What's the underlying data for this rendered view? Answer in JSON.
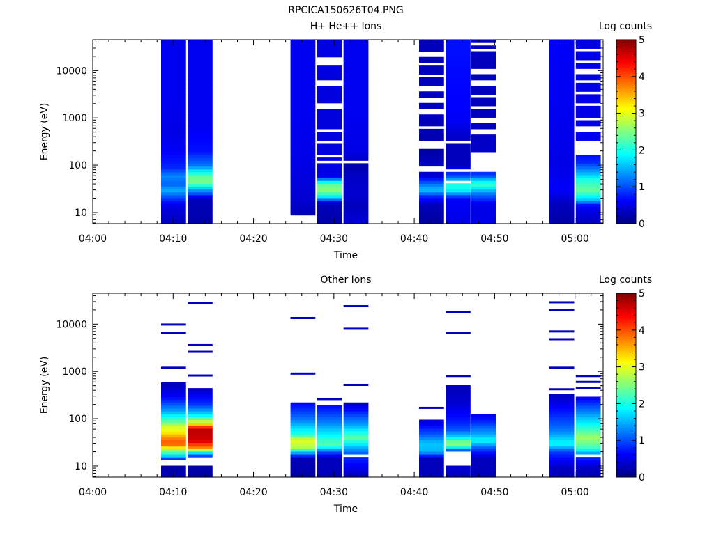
{
  "figure_title": "RPCICA150626T04.PNG",
  "chart_data": [
    {
      "type": "heatmap",
      "title": "H+ He++ Ions",
      "xlabel": "Time",
      "ylabel": "Energy (eV)",
      "x_ticks": [
        "04:00",
        "04:10",
        "04:20",
        "04:30",
        "04:40",
        "04:50",
        "05:00"
      ],
      "x_range_minutes": [
        0,
        63.5
      ],
      "y_ticks": [
        "10",
        "100",
        "1000",
        "10000"
      ],
      "y_scale": "log",
      "y_range": [
        5.8,
        45000
      ],
      "colorbar": {
        "label": "Log counts",
        "ticks": [
          "0",
          "1",
          "2",
          "3",
          "4",
          "5"
        ],
        "range": [
          0,
          5
        ],
        "colormap": "jet"
      },
      "columns": [
        {
          "t0": 8.5,
          "t1": 11.6,
          "profile": [
            [
              6,
              0.3
            ],
            [
              9.5,
              0.4
            ],
            [
              14,
              0.5
            ],
            [
              20,
              0.9
            ],
            [
              30,
              1.5
            ],
            [
              40,
              1.1
            ],
            [
              60,
              1.3
            ],
            [
              90,
              0.8
            ],
            [
              200,
              0.6
            ],
            [
              500,
              0.5
            ],
            [
              2000,
              0.55
            ],
            [
              45000,
              0.55
            ]
          ],
          "gaps": []
        },
        {
          "t0": 11.8,
          "t1": 14.9,
          "profile": [
            [
              6,
              0.2
            ],
            [
              20,
              0.3
            ],
            [
              25,
              1.0
            ],
            [
              30,
              1.4
            ],
            [
              45,
              2.5
            ],
            [
              60,
              2.3
            ],
            [
              100,
              1.2
            ],
            [
              200,
              0.7
            ],
            [
              800,
              0.55
            ],
            [
              45000,
              0.55
            ]
          ],
          "gaps": []
        },
        {
          "t0": 24.6,
          "t1": 27.7,
          "profile": [
            [
              6,
              0.5
            ],
            [
              9.5,
              0.3
            ],
            [
              20,
              0.4
            ],
            [
              100,
              0.5
            ],
            [
              1000,
              0.55
            ],
            [
              45000,
              0.55
            ]
          ],
          "gaps": [
            [
              6,
              9.4
            ]
          ]
        },
        {
          "t0": 27.9,
          "t1": 31.0,
          "profile": [
            [
              6,
              0.2
            ],
            [
              16,
              0.3
            ],
            [
              22,
              1.8
            ],
            [
              30,
              2.6
            ],
            [
              40,
              2.3
            ],
            [
              60,
              0.5
            ],
            [
              1000,
              0.45
            ],
            [
              45000,
              0.5
            ]
          ],
          "gaps": [
            [
              12000,
              19000
            ],
            [
              4800,
              6300
            ],
            [
              1600,
              2100
            ],
            [
              520,
              600
            ],
            [
              300,
              340
            ],
            [
              240,
              270
            ],
            [
              140,
              160
            ],
            [
              110,
              125
            ]
          ]
        },
        {
          "t0": 31.2,
          "t1": 34.3,
          "profile": [
            [
              6,
              0.45
            ],
            [
              14,
              0.3
            ],
            [
              25,
              0.4
            ],
            [
              60,
              0.35
            ],
            [
              100,
              0.2
            ],
            [
              200,
              0.5
            ],
            [
              1000,
              0.55
            ],
            [
              45000,
              0.55
            ]
          ],
          "gaps": [
            [
              105,
              118
            ]
          ]
        },
        {
          "t0": 40.6,
          "t1": 43.7,
          "profile": [
            [
              6,
              0.15
            ],
            [
              15,
              0.3
            ],
            [
              22,
              0.8
            ],
            [
              30,
              1.6
            ],
            [
              40,
              1.2
            ],
            [
              60,
              0.4
            ],
            [
              200,
              0.2
            ],
            [
              1000,
              0.3
            ],
            [
              45000,
              0.3
            ]
          ],
          "gaps": [
            [
              75,
              100
            ],
            [
              230,
              320
            ],
            [
              550,
              700
            ],
            [
              1200,
              1500
            ],
            [
              2200,
              2600
            ],
            [
              3800,
              4500
            ],
            [
              7000,
              8000
            ],
            [
              12000,
              14000
            ],
            [
              20000,
              24000
            ]
          ]
        },
        {
          "t0": 43.9,
          "t1": 47.0,
          "profile": [
            [
              6,
              0.5
            ],
            [
              20,
              0.6
            ],
            [
              30,
              1.9
            ],
            [
              40,
              2.0
            ],
            [
              60,
              1.0
            ],
            [
              100,
              0.3
            ],
            [
              300,
              0.3
            ],
            [
              1000,
              0.6
            ],
            [
              45000,
              0.7
            ]
          ],
          "gaps": [
            [
              40,
              45
            ],
            [
              70,
              80
            ],
            [
              120,
              130
            ],
            [
              300,
              330
            ]
          ]
        },
        {
          "t0": 47.1,
          "t1": 50.2,
          "profile": [
            [
              6,
              0.5
            ],
            [
              15,
              0.5
            ],
            [
              25,
              1.2
            ],
            [
              40,
              2.2
            ],
            [
              60,
              1.0
            ],
            [
              100,
              0.4
            ],
            [
              1000,
              0.3
            ],
            [
              45000,
              0.3
            ]
          ],
          "gaps": [
            [
              70,
              140
            ],
            [
              140,
              190
            ],
            [
              450,
              600
            ],
            [
              800,
              1000
            ],
            [
              1500,
              1800
            ],
            [
              2800,
              3300
            ],
            [
              5000,
              6000
            ],
            [
              9000,
              11000
            ],
            [
              16000,
              18000
            ],
            [
              26000,
              30000
            ],
            [
              36000,
              40000
            ]
          ]
        },
        {
          "t0": 56.8,
          "t1": 59.9,
          "profile": [
            [
              6,
              0.2
            ],
            [
              15,
              0.3
            ],
            [
              30,
              0.6
            ],
            [
              100,
              0.5
            ],
            [
              1000,
              0.55
            ],
            [
              45000,
              0.6
            ]
          ],
          "gaps": []
        },
        {
          "t0": 60.1,
          "t1": 63.2,
          "profile": [
            [
              6,
              0.3
            ],
            [
              14,
              0.6
            ],
            [
              18,
              1.5
            ],
            [
              30,
              2.4
            ],
            [
              50,
              2.0
            ],
            [
              80,
              1.3
            ],
            [
              120,
              0.8
            ],
            [
              200,
              0.6
            ],
            [
              1000,
              0.5
            ],
            [
              45000,
              0.5
            ]
          ],
          "gaps": [
            [
              160,
              320
            ],
            [
              500,
              650
            ],
            [
              900,
              1100
            ],
            [
              1800,
              2100
            ],
            [
              3000,
              3500
            ],
            [
              5200,
              6000
            ],
            [
              9000,
              10500
            ],
            [
              15000,
              17000
            ],
            [
              25000,
              28000
            ]
          ]
        }
      ]
    },
    {
      "type": "heatmap",
      "title": "Other Ions",
      "xlabel": "Time",
      "ylabel": "Energy (eV)",
      "x_ticks": [
        "04:00",
        "04:10",
        "04:20",
        "04:30",
        "04:40",
        "04:50",
        "05:00"
      ],
      "x_range_minutes": [
        0,
        63.5
      ],
      "y_ticks": [
        "10",
        "100",
        "1000",
        "10000"
      ],
      "y_scale": "log",
      "y_range": [
        5.8,
        45000
      ],
      "colorbar": {
        "label": "Log counts",
        "ticks": [
          "0",
          "1",
          "2",
          "3",
          "4",
          "5"
        ],
        "range": [
          0,
          5
        ],
        "colormap": "jet"
      },
      "columns": [
        {
          "t0": 8.5,
          "t1": 11.6,
          "profile": [
            [
              6,
              0.3
            ],
            [
              9.5,
              0.2
            ],
            [
              14,
              0.8
            ],
            [
              17,
              1.8
            ],
            [
              22,
              2.6
            ],
            [
              30,
              4.0
            ],
            [
              40,
              3.7
            ],
            [
              55,
              3.1
            ],
            [
              70,
              2.9
            ],
            [
              90,
              2.3
            ],
            [
              150,
              1.4
            ],
            [
              300,
              0.6
            ],
            [
              550,
              0.3
            ]
          ],
          "gaps": [
            [
              9.6,
              14
            ]
          ],
          "lines": [
            1200,
            6500,
            9800
          ]
        },
        {
          "t0": 11.8,
          "t1": 14.9,
          "profile": [
            [
              6,
              0.2
            ],
            [
              9.5,
              0.2
            ],
            [
              14,
              0.3
            ],
            [
              18,
              1.3
            ],
            [
              25,
              3.7
            ],
            [
              35,
              4.6
            ],
            [
              60,
              4.7
            ],
            [
              80,
              3.2
            ],
            [
              120,
              1.8
            ],
            [
              200,
              0.9
            ],
            [
              450,
              0.3
            ]
          ],
          "gaps": [
            [
              9.6,
              15
            ]
          ],
          "lines": [
            820,
            2600,
            3600,
            28000
          ]
        },
        {
          "t0": 24.6,
          "t1": 27.7,
          "profile": [
            [
              6,
              0.2
            ],
            [
              15,
              0.3
            ],
            [
              25,
              2.7
            ],
            [
              35,
              3.0
            ],
            [
              50,
              2.0
            ],
            [
              100,
              1.2
            ],
            [
              220,
              0.6
            ]
          ],
          "gaps": [],
          "lines": [
            900,
            13500
          ]
        },
        {
          "t0": 27.9,
          "t1": 31.0,
          "profile": [
            [
              15,
              0.3
            ],
            [
              20,
              1.0
            ],
            [
              28,
              2.3
            ],
            [
              40,
              2.0
            ],
            [
              80,
              1.3
            ],
            [
              200,
              0.6
            ]
          ],
          "gaps": [],
          "lines": [
            260
          ]
        },
        {
          "t0": 31.2,
          "t1": 34.3,
          "profile": [
            [
              6,
              0.3
            ],
            [
              15,
              0.8
            ],
            [
              25,
              1.5
            ],
            [
              40,
              2.4
            ],
            [
              70,
              1.5
            ],
            [
              140,
              0.8
            ],
            [
              210,
              0.3
            ]
          ],
          "gaps": [
            [
              15.5,
              18
            ]
          ],
          "lines": [
            520,
            8000,
            24000
          ]
        },
        {
          "t0": 40.6,
          "t1": 43.7,
          "profile": [
            [
              15,
              0.3
            ],
            [
              20,
              1.5
            ],
            [
              30,
              1.6
            ],
            [
              50,
              1.0
            ],
            [
              100,
              0.3
            ]
          ],
          "gaps": [],
          "lines": [
            170
          ]
        },
        {
          "t0": 43.9,
          "t1": 47.0,
          "profile": [
            [
              6,
              0.3
            ],
            [
              20,
              0.6
            ],
            [
              30,
              2.7
            ],
            [
              40,
              1.8
            ],
            [
              60,
              1.0
            ],
            [
              100,
              0.7
            ],
            [
              230,
              0.4
            ],
            [
              480,
              0.3
            ]
          ],
          "gaps": [
            [
              9.6,
              20
            ]
          ],
          "lines": [
            800,
            6500,
            18000
          ]
        },
        {
          "t0": 47.1,
          "t1": 50.2,
          "profile": [
            [
              15,
              0.3
            ],
            [
              25,
              1.1
            ],
            [
              35,
              1.9
            ],
            [
              50,
              1.4
            ],
            [
              120,
              0.5
            ]
          ],
          "gaps": [],
          "lines": []
        },
        {
          "t0": 56.8,
          "t1": 59.9,
          "profile": [
            [
              9,
              0.3
            ],
            [
              20,
              0.9
            ],
            [
              30,
              1.9
            ],
            [
              60,
              1.2
            ],
            [
              150,
              0.7
            ],
            [
              330,
              0.3
            ]
          ],
          "gaps": [],
          "lines": [
            420,
            1200,
            4800,
            7000,
            20000,
            29000
          ]
        },
        {
          "t0": 60.1,
          "t1": 63.2,
          "profile": [
            [
              9,
              0.3
            ],
            [
              15,
              0.8
            ],
            [
              25,
              2.2
            ],
            [
              40,
              2.7
            ],
            [
              70,
              2.0
            ],
            [
              150,
              1.2
            ],
            [
              280,
              0.6
            ]
          ],
          "gaps": [
            [
              15.5,
              18
            ]
          ],
          "lines": [
            450,
            600,
            800
          ]
        }
      ]
    }
  ]
}
